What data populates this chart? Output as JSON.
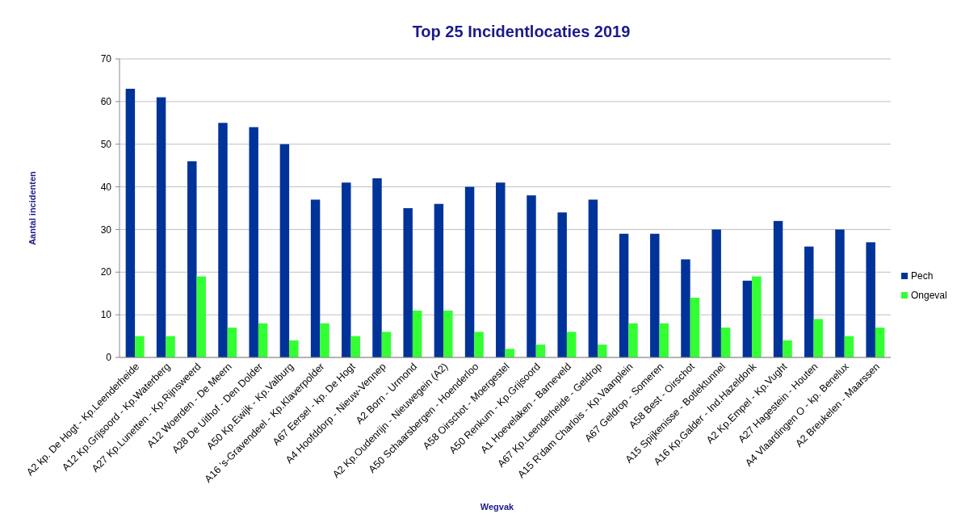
{
  "chart_data": {
    "type": "bar",
    "title": "Top 25 Incidentlocaties 2019",
    "xlabel": "Wegvak",
    "ylabel": "Aantal incidenten",
    "categories": [
      "A2 kp. De Hogt - Kp.Leenderheide",
      "A12 Kp.Grijsoord - Kp.Waterberg",
      "A27 Kp.Lunetten - Kp.Rijnsweerd",
      "A12 Woerden - De Meern",
      "A28 De Uithof - Den Dolder",
      "A50 Kp.Ewijk - Kp.Valburg",
      "A16 's-Gravendeel - Kp.Klaverpolder",
      "A67 Eersel - kp. De Hogt",
      "A4 Hoofddorp - Nieuw-Vennep",
      "A2 Born - Urmond",
      "A2 Kp.Oudenrijn - Nieuwegein (A2)",
      "A50 Schaarsbergen - Hoenderloo",
      "A58 Oirschot - Moergestel",
      "A50 Renkum - Kp.Grijsoord",
      "A1 Hoevelaken - Barneveld",
      "A67 Kp.Leenderheide - Geldrop",
      "A15 R'dam Charlois - Kp.Vaanplein",
      "A67 Geldrop - Someren",
      "A58 Best - Oirschot",
      "A15 Spijkenisse - Botlektunnel",
      "A16 Kp.Galder - Ind.Hazeldonk",
      "A2 Kp.Empel - Kp.Vught",
      "A27 Hagestein - Houten",
      "A4 Vlaardingen O - kp. Benelux",
      "A2 Breukelen - Maarssen"
    ],
    "series": [
      {
        "name": "Pech",
        "color": "#003399",
        "values": [
          63,
          61,
          46,
          55,
          54,
          50,
          37,
          41,
          42,
          35,
          36,
          40,
          41,
          38,
          34,
          37,
          29,
          29,
          23,
          30,
          18,
          32,
          26,
          30,
          27
        ]
      },
      {
        "name": "Ongeval",
        "color": "#33ff33",
        "values": [
          5,
          5,
          19,
          7,
          8,
          4,
          8,
          5,
          6,
          11,
          11,
          6,
          2,
          3,
          6,
          3,
          8,
          8,
          14,
          7,
          19,
          4,
          9,
          5,
          7
        ]
      }
    ],
    "ylim": [
      0,
      70
    ],
    "yticks": [
      0,
      10,
      20,
      30,
      40,
      50,
      60,
      70
    ],
    "grid": "y",
    "legend": "right"
  }
}
